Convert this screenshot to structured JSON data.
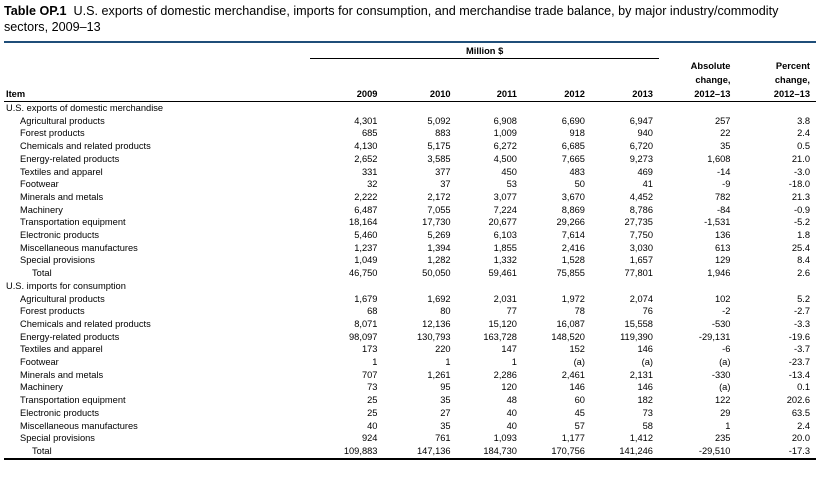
{
  "title": {
    "label": "Table OP.1",
    "text": "U.S. exports of domestic merchandise, imports for consumption, and merchandise trade balance, by major industry/commodity sectors, 2009–13"
  },
  "header": {
    "unit": "Million $",
    "item": "Item",
    "years": [
      "2009",
      "2010",
      "2011",
      "2012",
      "2013"
    ],
    "abs_change": [
      "Absolute",
      "change,",
      "2012–13"
    ],
    "pct_change": [
      "Percent",
      "change,",
      "2012–13"
    ]
  },
  "exports": {
    "heading": "U.S. exports of domestic merchandise",
    "rows": [
      {
        "item": "Agricultural products",
        "v": [
          "4,301",
          "5,092",
          "6,908",
          "6,690",
          "6,947",
          "257",
          "3.8"
        ]
      },
      {
        "item": "Forest products",
        "v": [
          "685",
          "883",
          "1,009",
          "918",
          "940",
          "22",
          "2.4"
        ]
      },
      {
        "item": "Chemicals and related products",
        "v": [
          "4,130",
          "5,175",
          "6,272",
          "6,685",
          "6,720",
          "35",
          "0.5"
        ]
      },
      {
        "item": "Energy-related products",
        "v": [
          "2,652",
          "3,585",
          "4,500",
          "7,665",
          "9,273",
          "1,608",
          "21.0"
        ]
      },
      {
        "item": "Textiles and apparel",
        "v": [
          "331",
          "377",
          "450",
          "483",
          "469",
          "-14",
          "-3.0"
        ]
      },
      {
        "item": "Footwear",
        "v": [
          "32",
          "37",
          "53",
          "50",
          "41",
          "-9",
          "-18.0"
        ]
      },
      {
        "item": "Minerals and metals",
        "v": [
          "2,222",
          "2,172",
          "3,077",
          "3,670",
          "4,452",
          "782",
          "21.3"
        ]
      },
      {
        "item": "Machinery",
        "v": [
          "6,487",
          "7,055",
          "7,224",
          "8,869",
          "8,786",
          "-84",
          "-0.9"
        ]
      },
      {
        "item": "Transportation equipment",
        "v": [
          "18,164",
          "17,730",
          "20,677",
          "29,266",
          "27,735",
          "-1,531",
          "-5.2"
        ]
      },
      {
        "item": "Electronic products",
        "v": [
          "5,460",
          "5,269",
          "6,103",
          "7,614",
          "7,750",
          "136",
          "1.8"
        ]
      },
      {
        "item": "Miscellaneous manufactures",
        "v": [
          "1,237",
          "1,394",
          "1,855",
          "2,416",
          "3,030",
          "613",
          "25.4"
        ]
      },
      {
        "item": "Special provisions",
        "v": [
          "1,049",
          "1,282",
          "1,332",
          "1,528",
          "1,657",
          "129",
          "8.4"
        ]
      }
    ],
    "total": {
      "item": "Total",
      "v": [
        "46,750",
        "50,050",
        "59,461",
        "75,855",
        "77,801",
        "1,946",
        "2.6"
      ]
    }
  },
  "imports": {
    "heading": "U.S. imports for consumption",
    "rows": [
      {
        "item": "Agricultural products",
        "v": [
          "1,679",
          "1,692",
          "2,031",
          "1,972",
          "2,074",
          "102",
          "5.2"
        ]
      },
      {
        "item": "Forest products",
        "v": [
          "68",
          "80",
          "77",
          "78",
          "76",
          "-2",
          "-2.7"
        ]
      },
      {
        "item": "Chemicals and related products",
        "v": [
          "8,071",
          "12,136",
          "15,120",
          "16,087",
          "15,558",
          "-530",
          "-3.3"
        ]
      },
      {
        "item": "Energy-related products",
        "v": [
          "98,097",
          "130,793",
          "163,728",
          "148,520",
          "119,390",
          "-29,131",
          "-19.6"
        ]
      },
      {
        "item": "Textiles and apparel",
        "v": [
          "173",
          "220",
          "147",
          "152",
          "146",
          "-6",
          "-3.7"
        ]
      },
      {
        "item": "Footwear",
        "v": [
          "1",
          "1",
          "1",
          "(a)",
          "(a)",
          "(a)",
          "-23.7"
        ]
      },
      {
        "item": "Minerals and metals",
        "v": [
          "707",
          "1,261",
          "2,286",
          "2,461",
          "2,131",
          "-330",
          "-13.4"
        ]
      },
      {
        "item": "Machinery",
        "v": [
          "73",
          "95",
          "120",
          "146",
          "146",
          "(a)",
          "0.1"
        ]
      },
      {
        "item": "Transportation equipment",
        "v": [
          "25",
          "35",
          "48",
          "60",
          "182",
          "122",
          "202.6"
        ]
      },
      {
        "item": "Electronic products",
        "v": [
          "25",
          "27",
          "40",
          "45",
          "73",
          "29",
          "63.5"
        ]
      },
      {
        "item": "Miscellaneous manufactures",
        "v": [
          "40",
          "35",
          "40",
          "57",
          "58",
          "1",
          "2.4"
        ]
      },
      {
        "item": "Special provisions",
        "v": [
          "924",
          "761",
          "1,093",
          "1,177",
          "1,412",
          "235",
          "20.0"
        ]
      }
    ],
    "total": {
      "item": "Total",
      "v": [
        "109,883",
        "147,136",
        "184,730",
        "170,756",
        "141,246",
        "-29,510",
        "-17.3"
      ]
    }
  }
}
